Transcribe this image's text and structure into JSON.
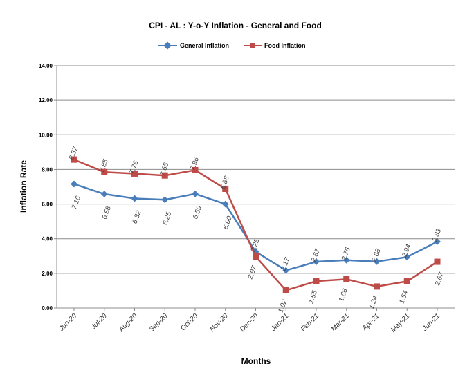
{
  "chart_data": {
    "type": "line",
    "title": "CPI - AL : Y-o-Y Inflation - General and Food",
    "xlabel": "Months",
    "ylabel": "Inflation Rate",
    "categories": [
      "Jun-20",
      "Jul-20",
      "Aug-20",
      "Sep-20",
      "Oct-20",
      "Nov-20",
      "Dec-20",
      "Jan-21",
      "Feb-21",
      "Mar-21",
      "Apr-21",
      "May-21",
      "Jun-21"
    ],
    "ylim": [
      0,
      14
    ],
    "yticks": [
      "0.00",
      "2.00",
      "4.00",
      "6.00",
      "8.00",
      "10.00",
      "12.00",
      "14.00"
    ],
    "grid": true,
    "legend": "top",
    "series": [
      {
        "name": "General Inflation",
        "color": "#4a7ebb",
        "marker": "diamond",
        "values": [
          7.16,
          6.58,
          6.32,
          6.25,
          6.59,
          6.0,
          3.25,
          2.17,
          2.67,
          2.76,
          2.68,
          2.94,
          3.83
        ],
        "labels": [
          "7.16",
          "6.58",
          "6.32",
          "6.25",
          "6.59",
          "6.00",
          "3.25",
          "2.17",
          "2.67",
          "2.76",
          "2.68",
          "2.94",
          "3.83"
        ]
      },
      {
        "name": "Food Inflation",
        "color": "#be4b48",
        "marker": "square",
        "values": [
          8.57,
          7.85,
          7.76,
          7.65,
          7.96,
          6.88,
          2.97,
          1.02,
          1.55,
          1.66,
          1.24,
          1.54,
          2.67
        ],
        "labels": [
          "8.57",
          "7.85",
          "7.76",
          "7.65",
          "7.96",
          "6.88",
          "2.97",
          "1.02",
          "1.55",
          "1.66",
          "1.24",
          "1.54",
          "2.67"
        ]
      }
    ]
  }
}
